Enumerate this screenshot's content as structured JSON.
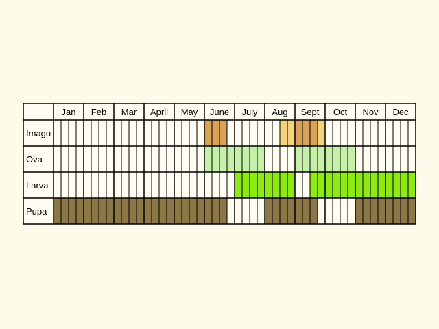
{
  "colors": {
    "background": "#fdfbe9",
    "cell": "#fffdf2",
    "grid": "#000000",
    "imago": "#d9a257",
    "imago_light": "#f5d27c",
    "ova": "#c6f0aa",
    "larva": "#8ee914",
    "pupa": "#8c7746"
  },
  "chart_data": {
    "type": "table",
    "months": [
      "Jan",
      "Feb",
      "Mar",
      "April",
      "May",
      "June",
      "July",
      "Aug",
      "Sept",
      "Oct",
      "Nov",
      "Dec"
    ],
    "quarters_per_month": 4,
    "stages": [
      {
        "name": "Imago",
        "periods": [
          {
            "from": 5.0,
            "to": 5.75,
            "color": "imago"
          },
          {
            "from": 7.5,
            "to": 8.0,
            "color": "imago_light"
          },
          {
            "from": 8.0,
            "to": 8.75,
            "color": "imago"
          },
          {
            "from": 8.75,
            "to": 9.0,
            "color": "imago_light"
          }
        ]
      },
      {
        "name": "Ova",
        "periods": [
          {
            "from": 5.0,
            "to": 6.0,
            "color": "ova"
          },
          {
            "from": 6.0,
            "to": 7.0,
            "color": "ova"
          },
          {
            "from": 8.0,
            "to": 9.0,
            "color": "ova"
          },
          {
            "from": 9.0,
            "to": 10.0,
            "color": "ova"
          }
        ]
      },
      {
        "name": "Larva",
        "periods": [
          {
            "from": 6.0,
            "to": 8.0,
            "color": "larva"
          },
          {
            "from": 8.5,
            "to": 12.0,
            "color": "larva"
          }
        ]
      },
      {
        "name": "Pupa",
        "periods": [
          {
            "from": 0.0,
            "to": 5.75,
            "color": "pupa"
          },
          {
            "from": 7.0,
            "to": 8.75,
            "color": "pupa"
          },
          {
            "from": 10.0,
            "to": 13.0,
            "color": "pupa"
          }
        ]
      }
    ]
  }
}
